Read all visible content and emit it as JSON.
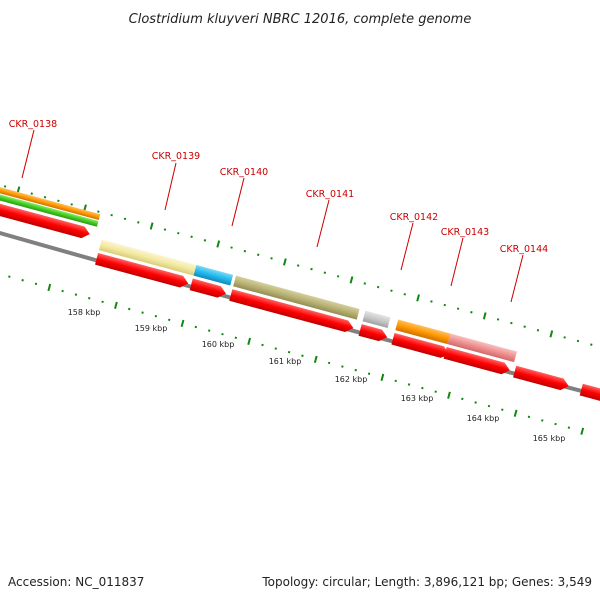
{
  "title": "Clostridium kluyveri NBRC 12016, complete genome",
  "footer": {
    "accession": "Accession: NC_011837",
    "summary": "Topology: circular; Length: 3,896,121 bp; Genes: 3,549"
  },
  "colors": {
    "cds_red": "#ff0000",
    "orange": "#ff9900",
    "green": "#44cc22",
    "pale_yellow": "#f3e9a0",
    "cyan": "#22bbee",
    "olive": "#b9b274",
    "grey": "#c8c8c8",
    "pink": "#f09090",
    "backbone": "#808080",
    "tick_green": "#118811",
    "label_red": "#cc0000"
  },
  "gene_labels": [
    "CKR_0138",
    "CKR_0139",
    "CKR_0140",
    "CKR_0141",
    "CKR_0142",
    "CKR_0143",
    "CKR_0144"
  ],
  "scale_labels": [
    "158 kbp",
    "159 kbp",
    "160 kbp",
    "161 kbp",
    "162 kbp",
    "163 kbp",
    "164 kbp",
    "165 kbp"
  ]
}
